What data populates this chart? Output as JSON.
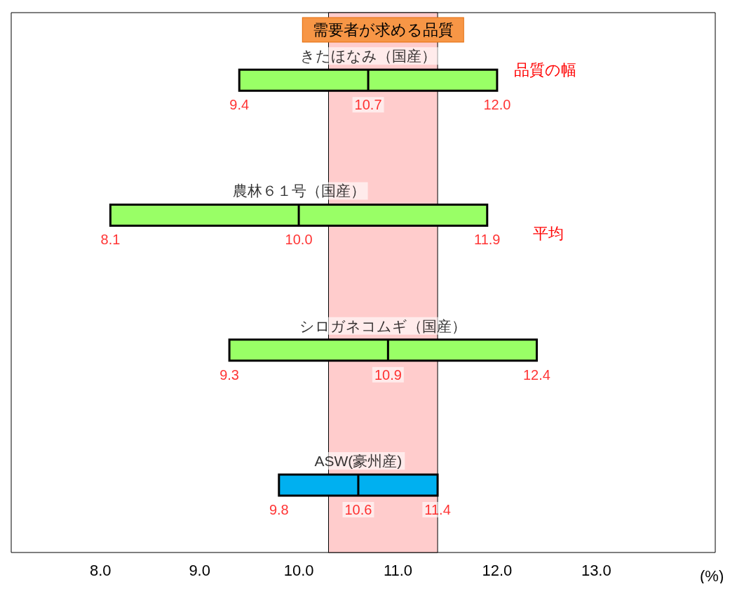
{
  "chart_data": {
    "type": "box",
    "orientation": "horizontal",
    "categories": [
      "きたほなみ（国産）",
      "農林６１号（国産）",
      "シロガネコムギ（国産）",
      "ASW(豪州産)"
    ],
    "xlabel": "(%)",
    "xlim": [
      7.1,
      14.2
    ],
    "xticks": [
      {
        "value": 8,
        "label": "8.0"
      },
      {
        "value": 9,
        "label": "9.0"
      },
      {
        "value": 10,
        "label": "10.0"
      },
      {
        "value": 11,
        "label": "11.0"
      },
      {
        "value": 12,
        "label": "12.0"
      },
      {
        "value": 13,
        "label": "13.0"
      }
    ],
    "grid": false,
    "boxes": [
      {
        "low": 9.4,
        "q1": 9.4,
        "median": 10.7,
        "q3": 12.0,
        "high": 12.0
      },
      {
        "low": 8.1,
        "q1": 8.1,
        "median": 10.0,
        "q3": 11.9,
        "high": 11.9
      },
      {
        "low": 9.3,
        "q1": 9.3,
        "median": 10.9,
        "q3": 12.4,
        "high": 12.4
      },
      {
        "low": 9.8,
        "q1": 9.8,
        "median": 10.6,
        "q3": 11.4,
        "high": 11.4
      }
    ],
    "colors": [
      "#99ff66",
      "#99ff66",
      "#99ff66",
      "#00b0f0"
    ],
    "bands": [
      {
        "axis": "x",
        "from": 10.3,
        "to": 11.4,
        "label": "需要者が求める品質",
        "color": "#ffcccc"
      }
    ],
    "annotations": [
      "品質の幅",
      "平均",
      "9.4",
      "10.7",
      "12.0",
      "8.1",
      "10.0",
      "11.9",
      "9.3",
      "10.9",
      "12.4",
      "9.8",
      "10.6",
      "11.4"
    ]
  }
}
